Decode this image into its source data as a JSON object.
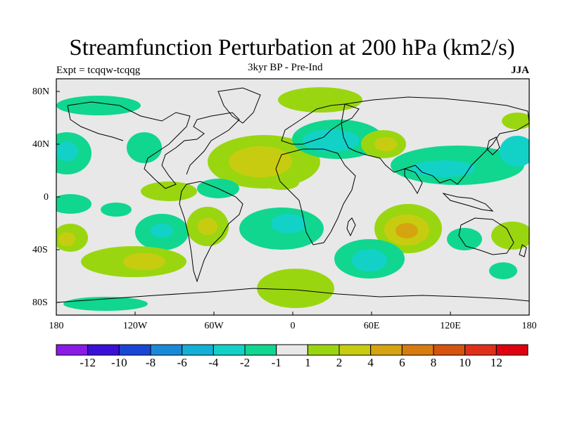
{
  "title": "Streamfunction Perturbation at 200 hPa (km2/s)",
  "subtitle": "3kyr BP - Pre-Ind",
  "experiment": "Expt = tcqqw-tcqqg",
  "season": "JJA",
  "lat_ticks": [
    "80N",
    "40N",
    "0",
    "40S",
    "80S"
  ],
  "lon_ticks": [
    "180",
    "120W",
    "60W",
    "0",
    "60E",
    "120E",
    "180"
  ],
  "colorbar": {
    "colors": [
      "#8a1ae6",
      "#3a10d8",
      "#1a46d6",
      "#1a8ad8",
      "#12b0d8",
      "#12d2c8",
      "#10d690",
      "#e8e8e8",
      "#9ad610",
      "#c8cc10",
      "#d6a410",
      "#d87c10",
      "#d65410",
      "#e0301a",
      "#e00010"
    ],
    "labels": [
      "-12",
      "-10",
      "-8",
      "-6",
      "-4",
      "-2",
      "-1",
      "1",
      "2",
      "4",
      "6",
      "8",
      "10",
      "12"
    ]
  }
}
